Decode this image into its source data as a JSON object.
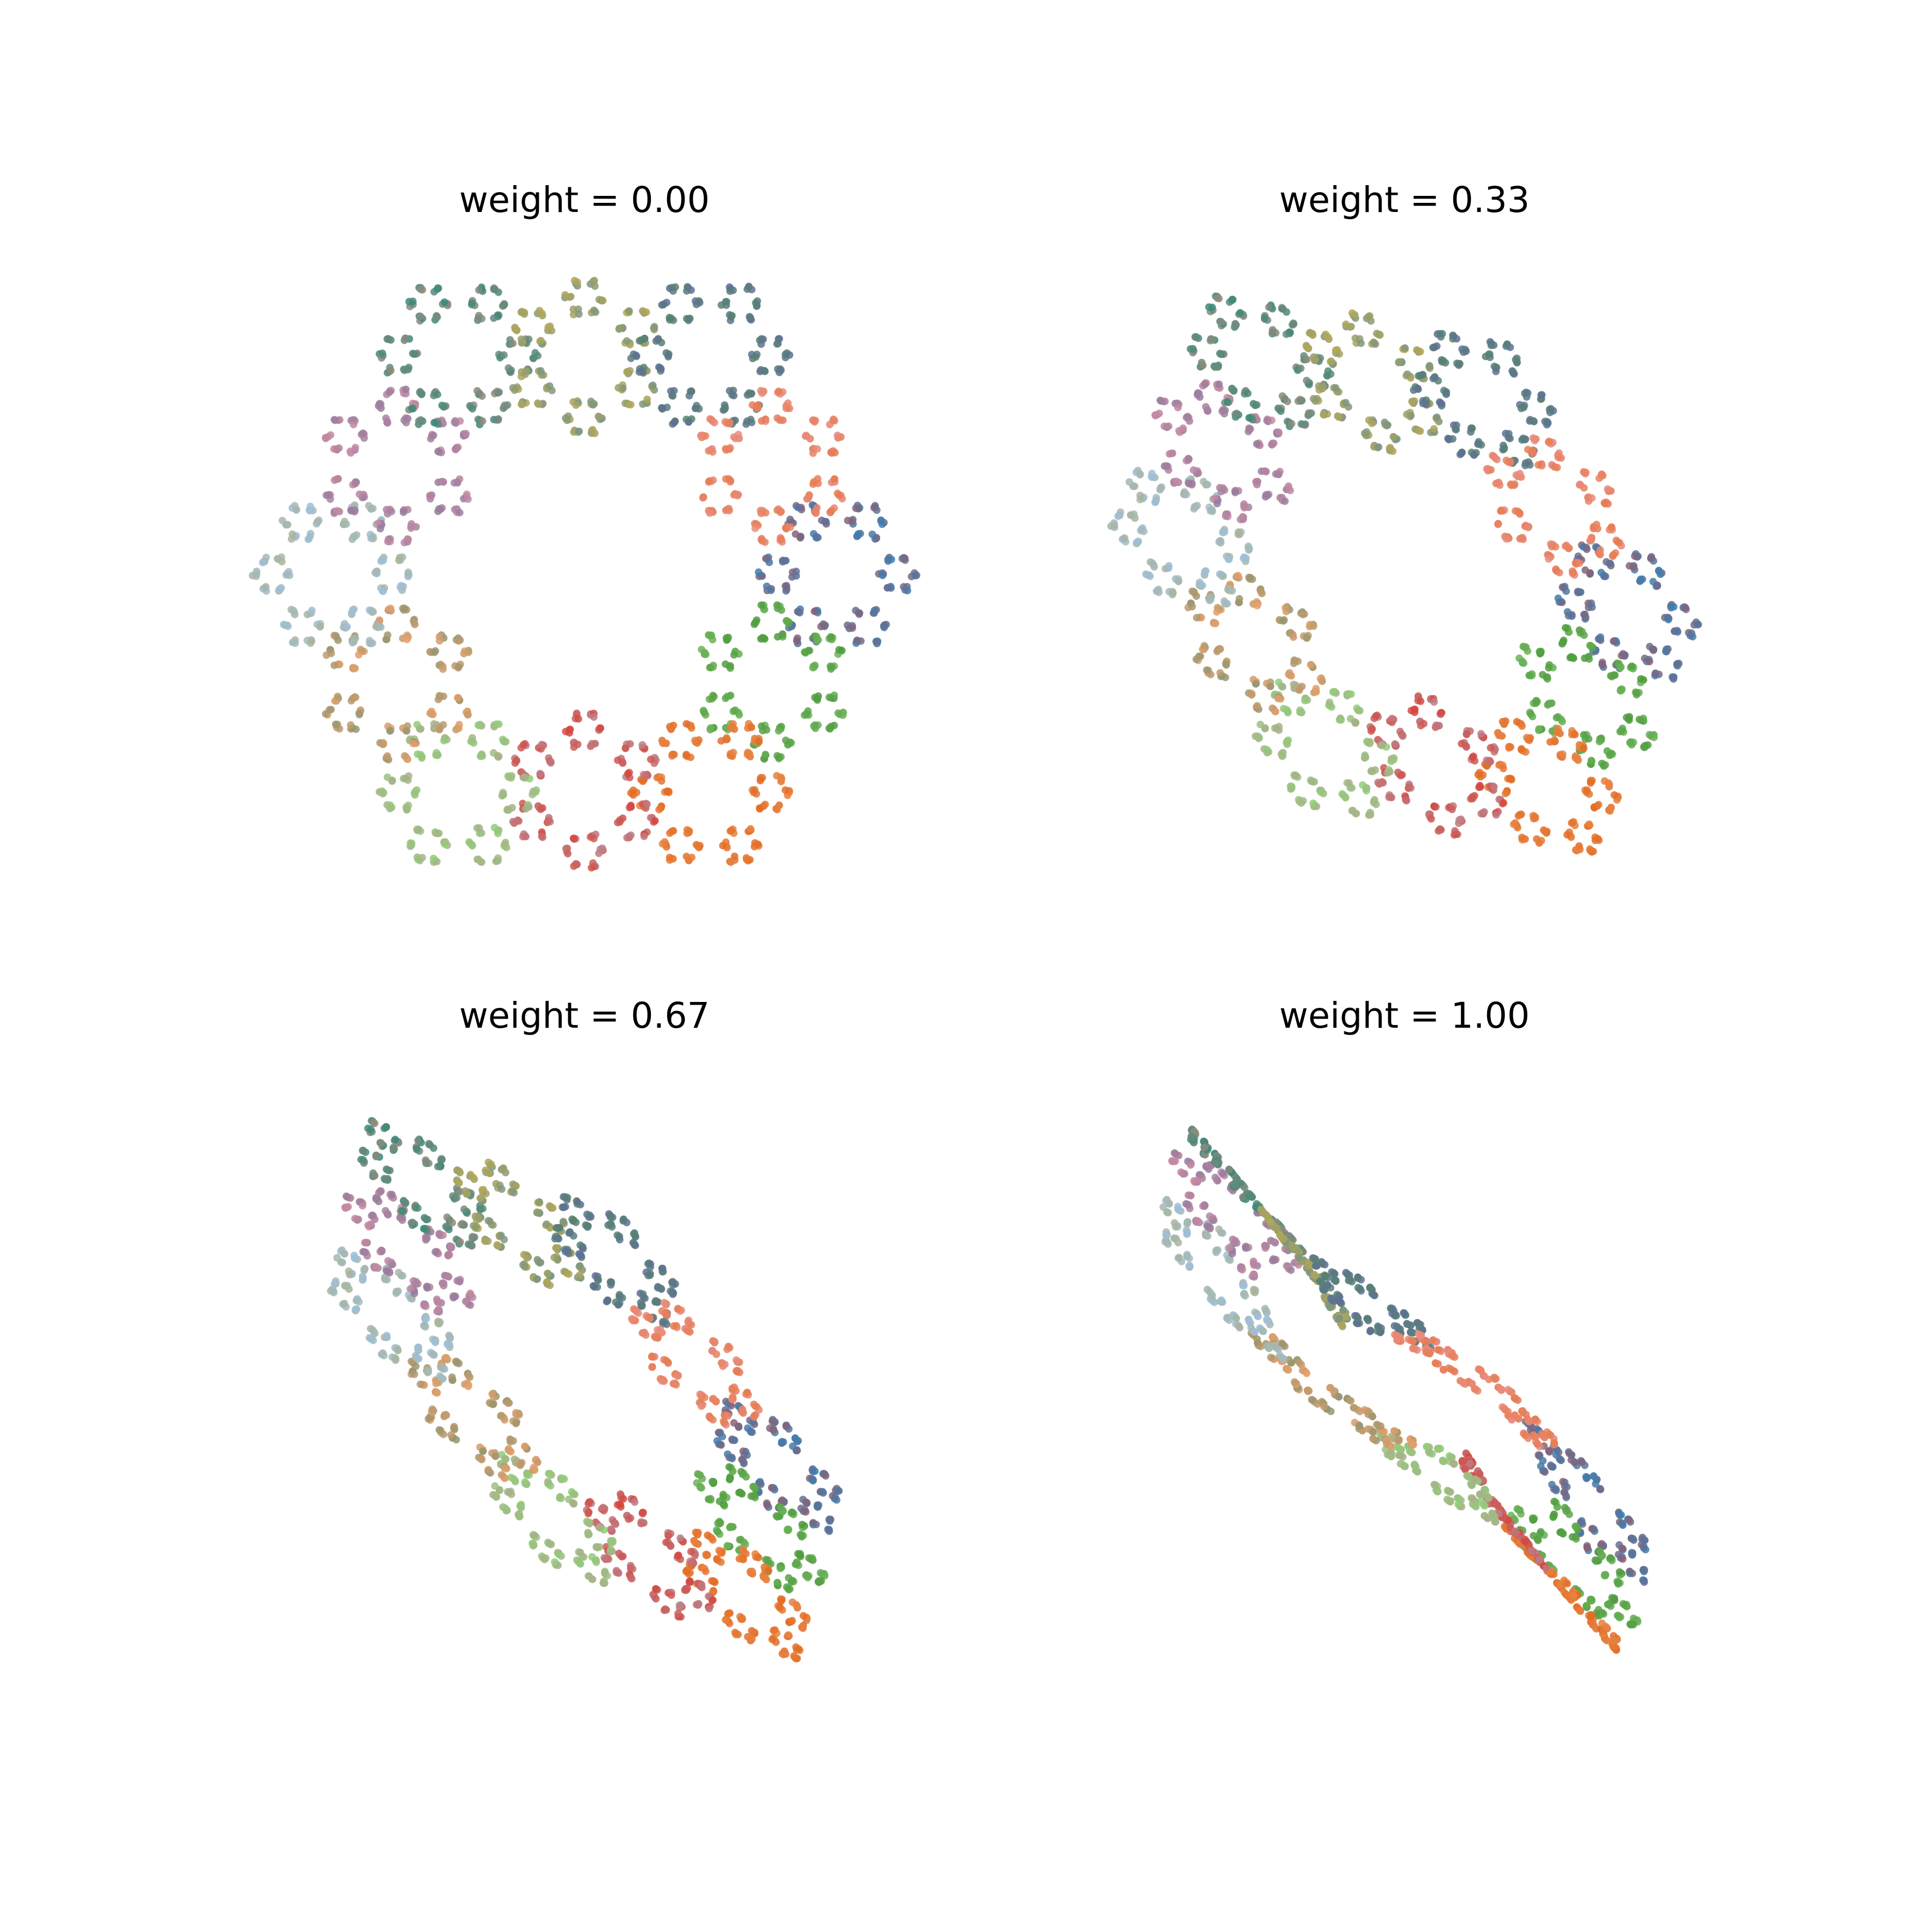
{
  "chart_data": [
    {
      "type": "scatter",
      "title": "weight = 0.00",
      "weight": 0.0,
      "axes_visible": false,
      "grid": false,
      "description_shape": "ring of hexagonal rosettes"
    },
    {
      "type": "scatter",
      "title": "weight = 0.33",
      "weight": 0.33,
      "axes_visible": false,
      "grid": false
    },
    {
      "type": "scatter",
      "title": "weight = 0.67",
      "weight": 0.67,
      "axes_visible": false,
      "grid": false
    },
    {
      "type": "scatter",
      "title": "weight = 1.00",
      "weight": 1.0,
      "axes_visible": false,
      "grid": false
    }
  ],
  "palette": [
    "#3b7fb3",
    "#4e9a3e",
    "#e36b22",
    "#d6463c",
    "#8fcf78",
    "#e9a06a",
    "#9fbfdc",
    "#c98aa2",
    "#3a8a7a",
    "#b5a855",
    "#5f6f9a",
    "#e88c80"
  ]
}
